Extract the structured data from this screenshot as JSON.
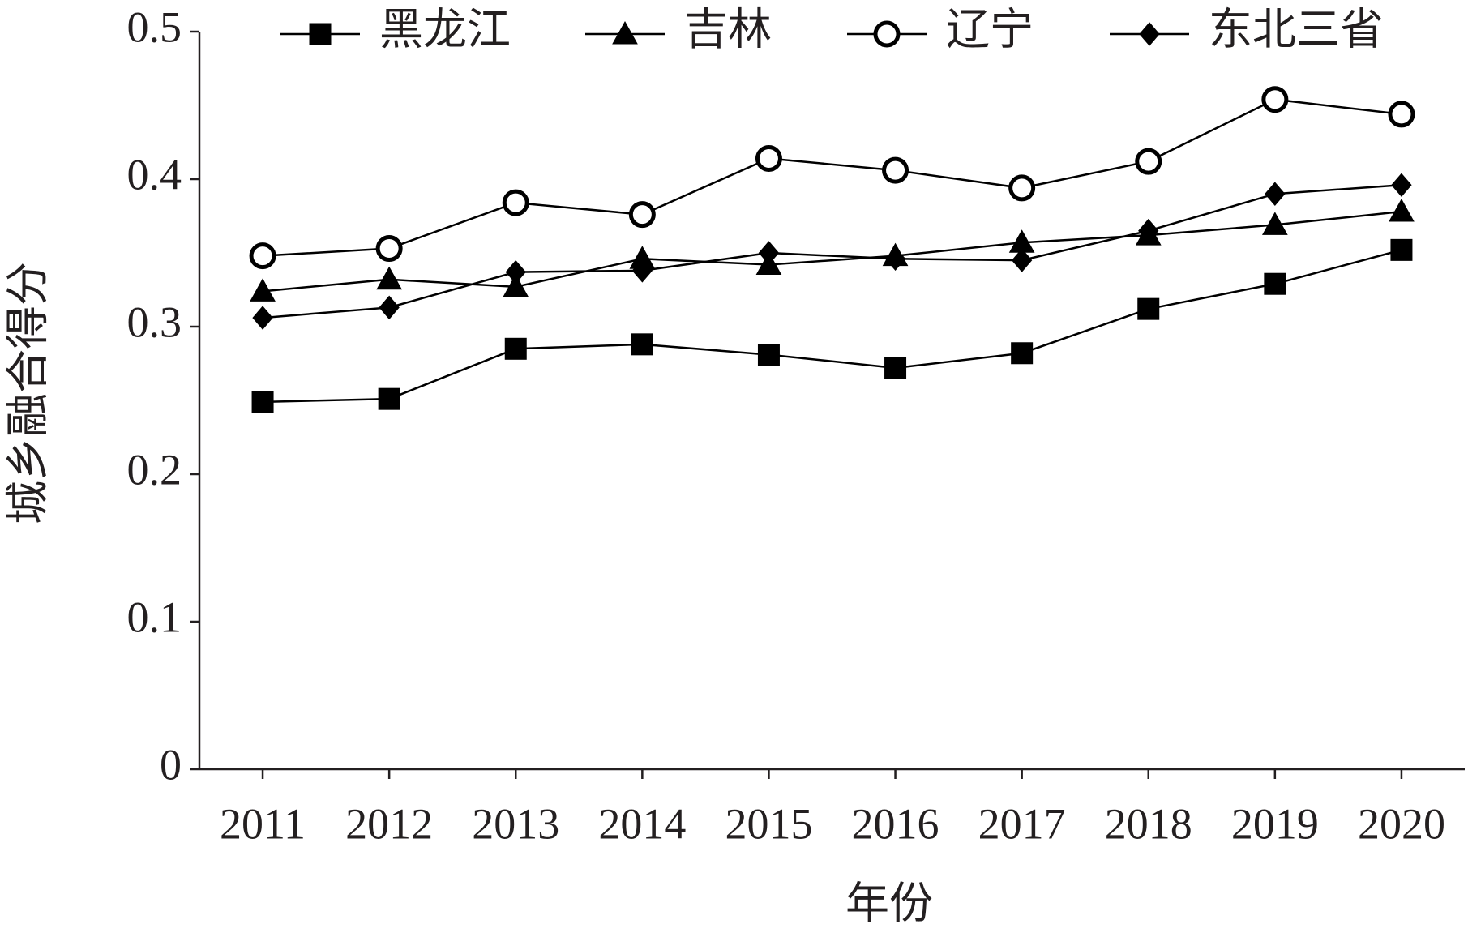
{
  "chart_data": {
    "type": "line",
    "x_label": "年份",
    "y_label": "城乡融合得分",
    "categories": [
      "2011",
      "2012",
      "2013",
      "2014",
      "2015",
      "2016",
      "2017",
      "2018",
      "2019",
      "2020"
    ],
    "ylim": [
      0,
      0.5
    ],
    "yticks": [
      0,
      0.1,
      0.2,
      0.3,
      0.4,
      0.5
    ],
    "grid": false,
    "legend": "top",
    "series": [
      {
        "name": "黑龙江",
        "color": "#000000",
        "marker": "square",
        "values": [
          0.249,
          0.251,
          0.285,
          0.288,
          0.281,
          0.272,
          0.282,
          0.312,
          0.329,
          0.352
        ]
      },
      {
        "name": "吉林",
        "color": "#000000",
        "marker": "triangle",
        "values": [
          0.324,
          0.332,
          0.327,
          0.346,
          0.342,
          0.348,
          0.357,
          0.362,
          0.369,
          0.378
        ]
      },
      {
        "name": "辽宁",
        "color": "#000000",
        "marker": "circle",
        "values": [
          0.348,
          0.353,
          0.384,
          0.376,
          0.414,
          0.406,
          0.394,
          0.412,
          0.454,
          0.444
        ]
      },
      {
        "name": "东北三省",
        "color": "#000000",
        "marker": "diamond",
        "values": [
          0.306,
          0.313,
          0.337,
          0.338,
          0.35,
          0.346,
          0.345,
          0.365,
          0.39,
          0.396
        ]
      }
    ]
  }
}
